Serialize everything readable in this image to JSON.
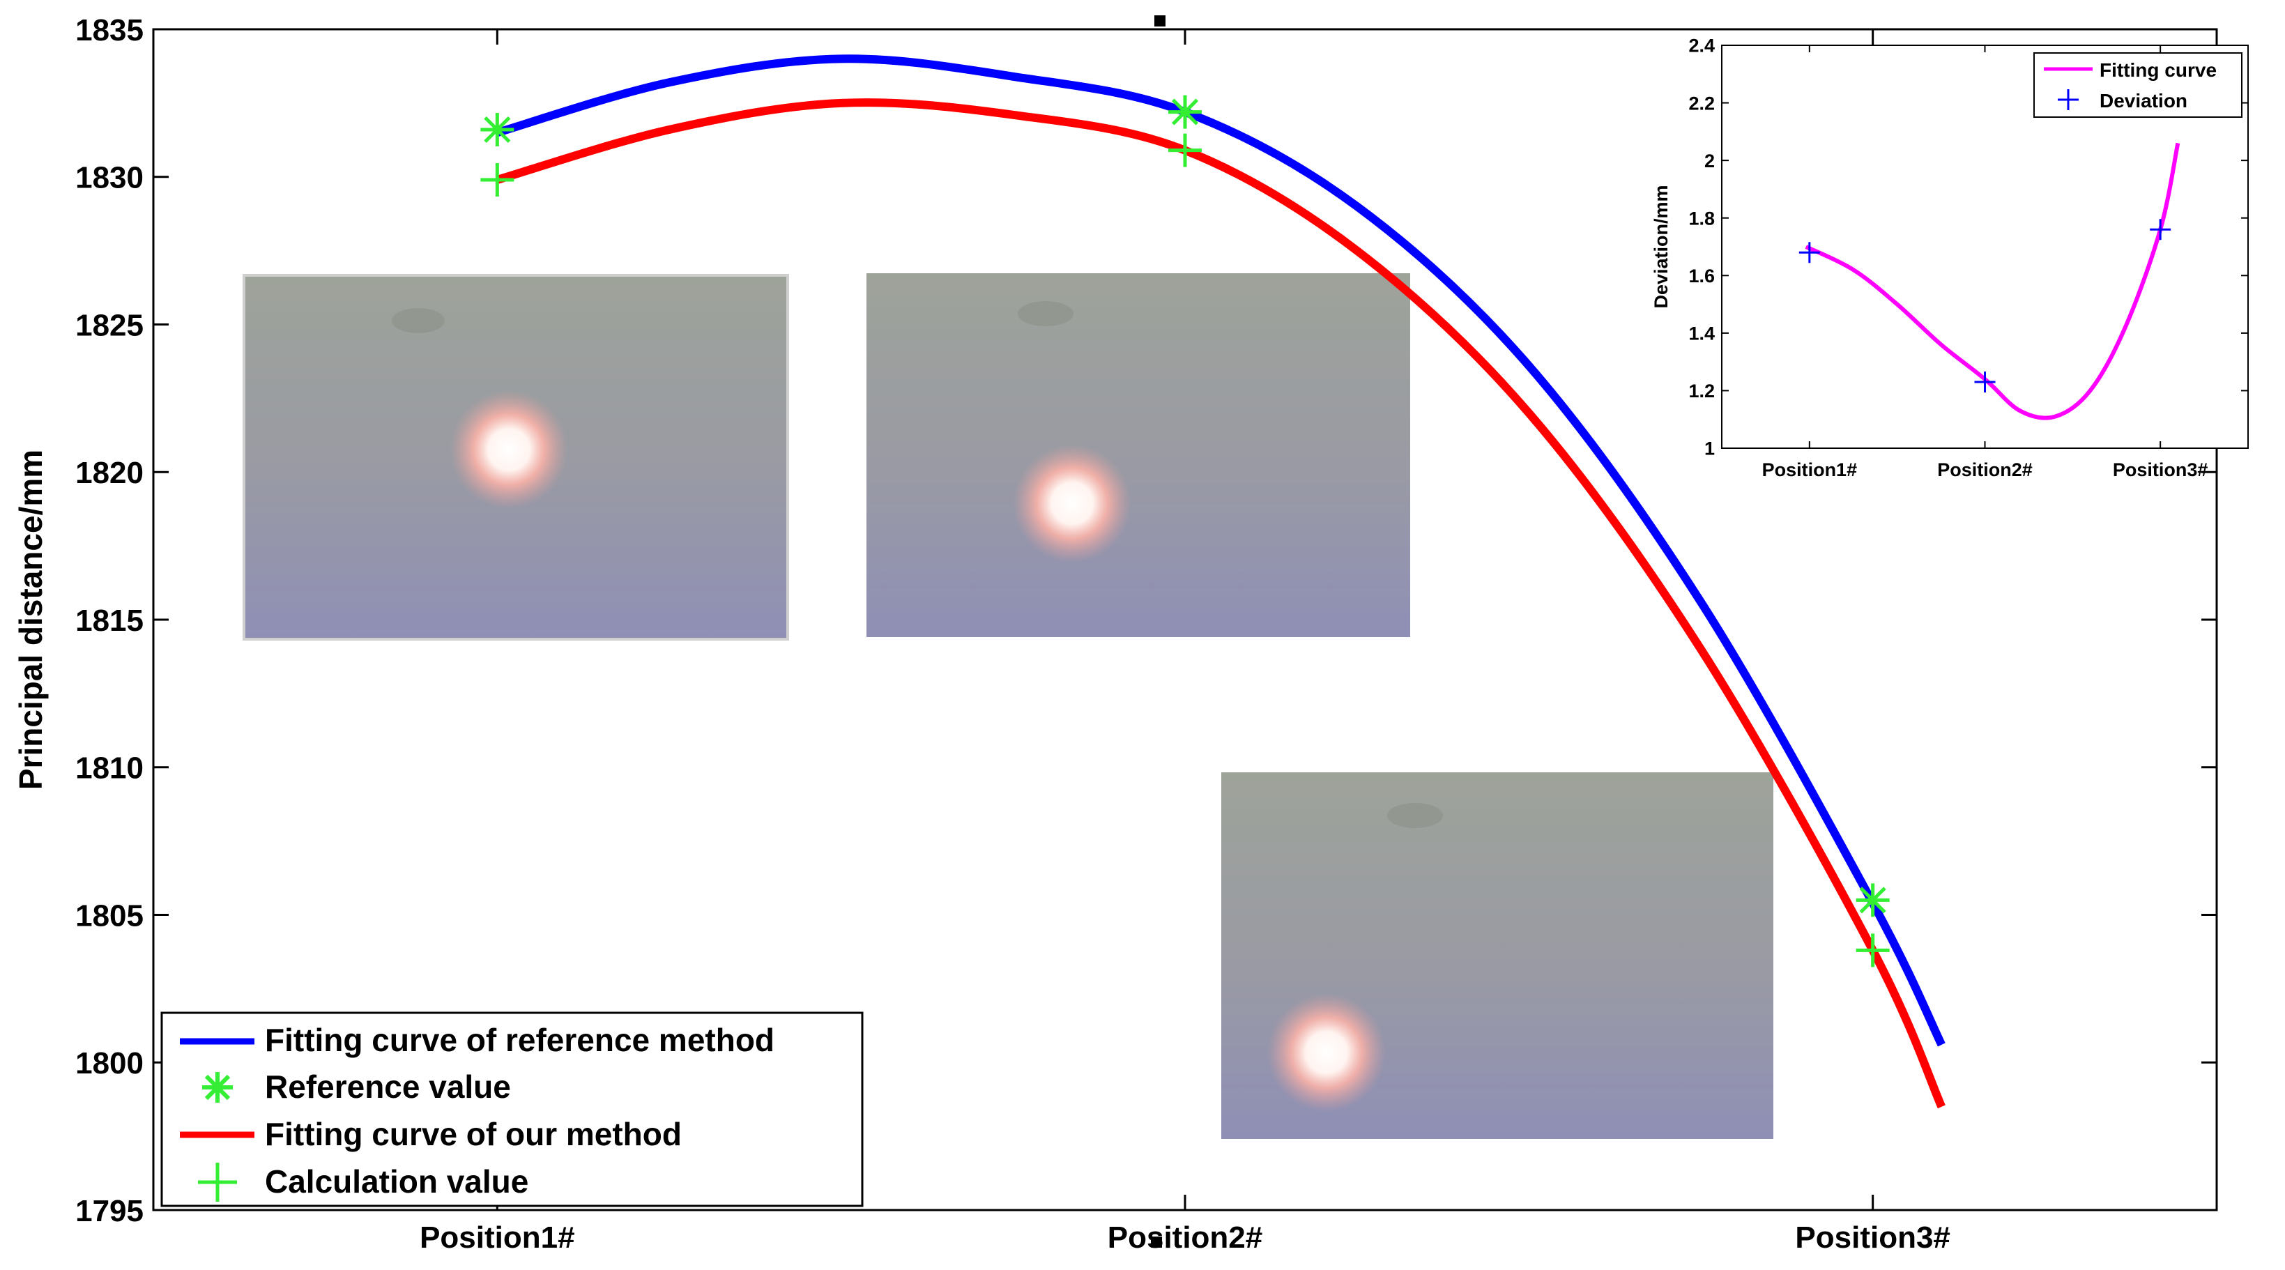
{
  "chart_data": [
    {
      "type": "line",
      "xlabel": "",
      "ylabel": "Principal distance/mm",
      "categories": [
        "Position1#",
        "Position2#",
        "Position3#"
      ],
      "ylim": [
        1795,
        1835
      ],
      "yticks": [
        "1795",
        "1800",
        "1805",
        "1810",
        "1815",
        "1820",
        "1825",
        "1830",
        "1835"
      ],
      "grid": false,
      "legend_position": "bottom-left",
      "series": [
        {
          "name": "Fitting curve of reference method",
          "kind": "line",
          "color": "#0000ff",
          "x": [
            0.0,
            0.25,
            0.5,
            0.75,
            1.0,
            1.25,
            1.5,
            1.75,
            2.0,
            2.1
          ],
          "values": [
            1831.5,
            1833.2,
            1834.0,
            1833.4,
            1832.2,
            1829.0,
            1823.6,
            1815.6,
            1805.4,
            1800.6
          ]
        },
        {
          "name": "Reference value",
          "kind": "marker",
          "marker": "asterisk",
          "color": "#33ee33",
          "x": [
            0,
            1,
            2
          ],
          "values": [
            1831.6,
            1832.2,
            1805.5
          ]
        },
        {
          "name": "Fitting curve of our method",
          "kind": "line",
          "color": "#ff0000",
          "x": [
            0.0,
            0.25,
            0.5,
            0.75,
            1.0,
            1.25,
            1.5,
            1.75,
            2.0,
            2.1
          ],
          "values": [
            1829.9,
            1831.6,
            1832.5,
            1832.1,
            1830.9,
            1827.5,
            1822.0,
            1814.0,
            1803.8,
            1798.5
          ]
        },
        {
          "name": "Calculation value",
          "kind": "marker",
          "marker": "plus",
          "color": "#33ee33",
          "x": [
            0,
            1,
            2
          ],
          "values": [
            1829.9,
            1830.9,
            1803.8
          ]
        }
      ],
      "x_extent_values": [
        -0.5,
        2.5
      ],
      "insets": [
        "camera laser-spot photo at Position1#",
        "camera laser-spot photo at Position2#",
        "camera laser-spot photo at Position3#"
      ]
    },
    {
      "type": "line",
      "xlabel": "",
      "ylabel": "Deviation/mm",
      "categories": [
        "Position1#",
        "Position2#",
        "Position3#"
      ],
      "ylim": [
        1,
        2.4
      ],
      "yticks": [
        "1",
        "1.2",
        "1.4",
        "1.6",
        "1.8",
        "2",
        "2.2",
        "2.4"
      ],
      "grid": false,
      "legend_position": "top-right",
      "series": [
        {
          "name": "Fitting curve",
          "kind": "line",
          "color": "#ff00ff",
          "x": [
            -0.02,
            0.25,
            0.5,
            0.75,
            1.0,
            1.2,
            1.4,
            1.6,
            1.8,
            2.0,
            2.1
          ],
          "values": [
            1.7,
            1.62,
            1.5,
            1.36,
            1.24,
            1.13,
            1.11,
            1.2,
            1.42,
            1.76,
            2.06
          ]
        },
        {
          "name": "Deviation",
          "kind": "marker",
          "marker": "plus",
          "color": "#0000ff",
          "x": [
            0,
            1,
            2
          ],
          "values": [
            1.68,
            1.23,
            1.76
          ]
        }
      ],
      "x_extent_values": [
        -0.5,
        2.5
      ]
    }
  ]
}
